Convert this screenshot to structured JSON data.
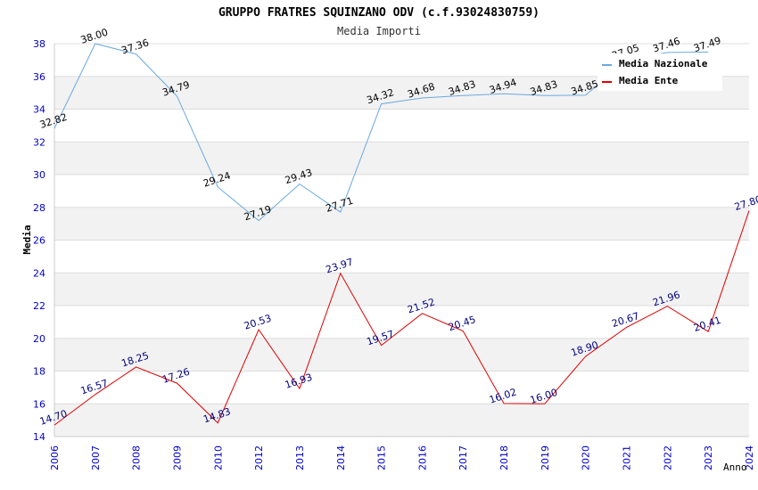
{
  "chart_data": {
    "type": "line",
    "title": "GRUPPO FRATRES SQUINZANO ODV (c.f.93024830759)",
    "subtitle": "Media Importi",
    "xlabel": "Anno",
    "ylabel": "Media",
    "ylim": [
      14,
      38
    ],
    "yticks": [
      "14",
      "16",
      "18",
      "20",
      "22",
      "24",
      "26",
      "28",
      "30",
      "32",
      "34",
      "36",
      "38"
    ],
    "categories": [
      "2006",
      "2007",
      "2008",
      "2009",
      "2010",
      "2012",
      "2013",
      "2014",
      "2015",
      "2016",
      "2017",
      "2018",
      "2019",
      "2020",
      "2021",
      "2022",
      "2023",
      "2024"
    ],
    "legend_position": "top-right",
    "series": [
      {
        "name": "Media Nazionale",
        "color": "#6aa9e0",
        "label_color": "#000000",
        "values": [
          32.82,
          38.0,
          37.36,
          34.79,
          29.24,
          27.19,
          29.43,
          27.71,
          34.32,
          34.68,
          34.83,
          34.94,
          34.83,
          34.85,
          37.05,
          37.46,
          37.49,
          null
        ],
        "labels": [
          "32.82",
          "38.00",
          "37.36",
          "34.79",
          "29.24",
          "27.19",
          "29.43",
          "27.71",
          "34.32",
          "34.68",
          "34.83",
          "34.94",
          "34.83",
          "34.85",
          "37.05",
          "37.46",
          "37.49",
          ""
        ]
      },
      {
        "name": "Media Ente",
        "color": "#e00000",
        "label_color": "#000080",
        "values": [
          14.7,
          16.57,
          18.25,
          17.26,
          14.83,
          20.53,
          16.93,
          23.97,
          19.57,
          21.52,
          20.45,
          16.02,
          16.0,
          18.9,
          20.67,
          21.96,
          20.41,
          27.8
        ],
        "labels": [
          "14.70",
          "16.57",
          "18.25",
          "17.26",
          "14.83",
          "20.53",
          "16.93",
          "23.97",
          "19.57",
          "21.52",
          "20.45",
          "16.02",
          "16.00",
          "18.90",
          "20.67",
          "21.96",
          "20.41",
          "27.80"
        ]
      }
    ]
  },
  "colors": {
    "axis_text": "#0000cc",
    "band": "#f2f2f2",
    "grid": "#dddddd",
    "title": "#000000",
    "subtitle": "#333333"
  }
}
